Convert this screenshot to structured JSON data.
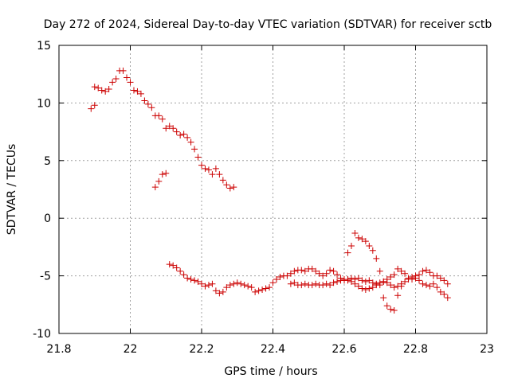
{
  "chart_data": {
    "type": "scatter",
    "title": "Day 272 of 2024, Sidereal Day-to-day VTEC variation (SDTVAR) for receiver sctb",
    "xlabel": "GPS time / hours",
    "ylabel": "SDTVAR / TECUs",
    "xlim": [
      21.8,
      23
    ],
    "ylim": [
      -10,
      15
    ],
    "xticks": [
      21.8,
      22,
      22.2,
      22.4,
      22.6,
      22.8,
      23
    ],
    "xtick_labels": [
      "21.8",
      "22",
      "22.2",
      "22.4",
      "22.6",
      "22.8",
      "23"
    ],
    "yticks": [
      -10,
      -5,
      0,
      5,
      10,
      15
    ],
    "ytick_labels": [
      "-10",
      "-5",
      "0",
      "5",
      "10",
      "15"
    ],
    "grid": true,
    "marker": "plus",
    "series_color": "#cc0000",
    "series": [
      {
        "name": "sctb",
        "x": [
          21.89,
          21.9,
          21.9,
          21.91,
          21.92,
          21.93,
          21.94,
          21.95,
          21.96,
          21.97,
          21.98,
          21.99,
          22.0,
          22.01,
          22.02,
          22.03,
          22.04,
          22.05,
          22.06,
          22.07,
          22.08,
          22.09,
          22.1,
          22.11,
          22.12,
          22.13,
          22.14,
          22.15,
          22.16,
          22.17,
          22.18,
          22.19,
          22.2,
          22.21,
          22.22,
          22.23,
          22.24,
          22.25,
          22.26,
          22.27,
          22.28,
          22.29,
          22.07,
          22.08,
          22.09,
          22.1,
          22.11,
          22.12,
          22.13,
          22.14,
          22.15,
          22.16,
          22.17,
          22.18,
          22.19,
          22.2,
          22.21,
          22.22,
          22.23,
          22.24,
          22.25,
          22.26,
          22.27,
          22.28,
          22.29,
          22.3,
          22.31,
          22.32,
          22.33,
          22.34,
          22.35,
          22.36,
          22.37,
          22.38,
          22.39,
          22.4,
          22.41,
          22.42,
          22.43,
          22.44,
          22.45,
          22.46,
          22.47,
          22.48,
          22.49,
          22.5,
          22.51,
          22.52,
          22.53,
          22.54,
          22.55,
          22.56,
          22.57,
          22.58,
          22.59,
          22.6,
          22.61,
          22.62,
          22.63,
          22.64,
          22.65,
          22.66,
          22.67,
          22.68,
          22.69,
          22.7,
          22.71,
          22.72,
          22.73,
          22.74,
          22.75,
          22.76,
          22.77,
          22.78,
          22.79,
          22.8,
          22.81,
          22.82,
          22.83,
          22.84,
          22.85,
          22.86,
          22.87,
          22.88,
          22.89,
          22.45,
          22.46,
          22.47,
          22.48,
          22.49,
          22.5,
          22.51,
          22.52,
          22.53,
          22.54,
          22.55,
          22.56,
          22.57,
          22.58,
          22.59,
          22.6,
          22.61,
          22.62,
          22.63,
          22.64,
          22.65,
          22.66,
          22.67,
          22.68,
          22.69,
          22.7,
          22.71,
          22.72,
          22.73,
          22.74,
          22.75,
          22.76,
          22.77,
          22.78,
          22.79,
          22.8,
          22.81,
          22.82,
          22.83,
          22.84,
          22.85,
          22.86,
          22.87,
          22.88,
          22.89,
          22.61,
          22.62,
          22.63,
          22.64,
          22.65,
          22.66,
          22.67,
          22.68,
          22.69,
          22.7,
          22.71,
          22.72,
          22.73,
          22.74,
          22.75,
          22.76
        ],
        "y": [
          9.5,
          11.4,
          9.8,
          11.3,
          11.1,
          11.0,
          11.2,
          11.8,
          12.1,
          12.8,
          12.8,
          12.2,
          11.8,
          11.1,
          11.0,
          10.8,
          10.2,
          9.9,
          9.6,
          8.9,
          8.9,
          8.6,
          7.8,
          8.0,
          7.8,
          7.5,
          7.2,
          7.3,
          7.0,
          6.6,
          6.0,
          5.3,
          4.6,
          4.3,
          4.2,
          3.8,
          4.3,
          3.8,
          3.3,
          2.9,
          2.6,
          2.7,
          2.7,
          3.2,
          3.8,
          3.9,
          -4.0,
          -4.1,
          -4.3,
          -4.6,
          -4.9,
          -5.2,
          -5.3,
          -5.4,
          -5.5,
          -5.7,
          -5.9,
          -5.8,
          -5.7,
          -6.3,
          -6.5,
          -6.4,
          -6.0,
          -5.8,
          -5.7,
          -5.6,
          -5.7,
          -5.8,
          -5.9,
          -6.0,
          -6.4,
          -6.3,
          -6.2,
          -6.1,
          -6.0,
          -5.6,
          -5.3,
          -5.1,
          -5.0,
          -5.0,
          -4.8,
          -4.6,
          -4.5,
          -4.5,
          -4.6,
          -4.4,
          -4.4,
          -4.6,
          -4.8,
          -5.0,
          -4.8,
          -4.5,
          -4.6,
          -4.9,
          -5.2,
          -5.4,
          -5.3,
          -5.2,
          -5.3,
          -5.2,
          -5.4,
          -5.5,
          -5.4,
          -5.6,
          -5.7,
          -5.8,
          -5.5,
          -5.3,
          -5.1,
          -4.9,
          -4.4,
          -4.6,
          -4.8,
          -5.2,
          -5.3,
          -5.0,
          -4.9,
          -4.6,
          -4.5,
          -4.7,
          -5.0,
          -5.0,
          -5.2,
          -5.4,
          -5.7,
          -5.7,
          -5.6,
          -5.8,
          -5.8,
          -5.7,
          -5.8,
          -5.8,
          -5.7,
          -5.8,
          -5.8,
          -5.7,
          -5.8,
          -5.6,
          -5.5,
          -5.4,
          -5.3,
          -5.4,
          -5.5,
          -5.7,
          -5.9,
          -6.1,
          -6.2,
          -6.1,
          -6.0,
          -5.8,
          -5.6,
          -5.5,
          -5.6,
          -5.8,
          -6.0,
          -5.9,
          -5.7,
          -5.5,
          -5.3,
          -5.1,
          -5.2,
          -5.4,
          -5.7,
          -5.8,
          -5.9,
          -5.7,
          -6.0,
          -6.4,
          -6.6,
          -6.9,
          -3.0,
          -2.4,
          -1.3,
          -1.7,
          -1.8,
          -2.0,
          -2.4,
          -2.8,
          -3.5,
          -4.6,
          -6.9,
          -7.6,
          -7.9,
          -8.0,
          -6.7,
          -5.9
        ]
      }
    ]
  }
}
